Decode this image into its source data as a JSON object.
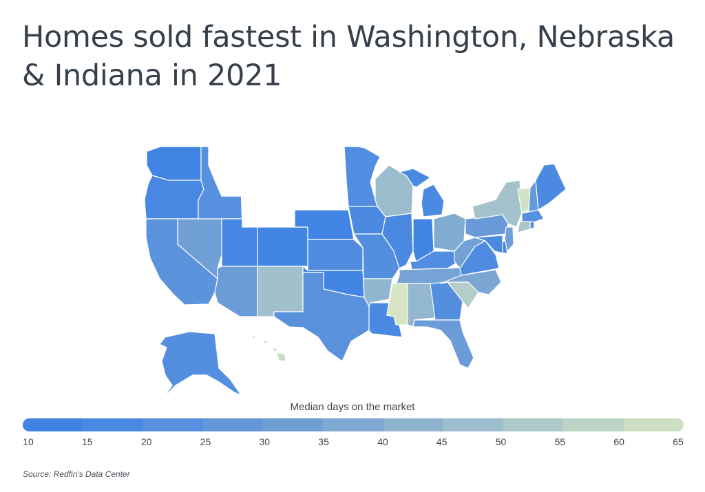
{
  "title": "Homes sold fastest in Washington, Nebraska & Indiana in 2021",
  "legend": {
    "title": "Median days on the market",
    "ticks": [
      "10",
      "15",
      "20",
      "25",
      "30",
      "35",
      "40",
      "45",
      "50",
      "55",
      "60",
      "65"
    ],
    "colors": [
      "#3f83e4",
      "#4a89e2",
      "#5690de",
      "#6397da",
      "#709fd6",
      "#7fa9d3",
      "#8db3cf",
      "#9dbecc",
      "#adc9c9",
      "#bdd4c6",
      "#cde0c4",
      "#dfe9c4"
    ]
  },
  "source": "Source:  Redfin's Data Center",
  "chart_data": {
    "type": "choropleth",
    "metric": "Median days on the market",
    "scale_range": [
      10,
      65
    ],
    "no_data_color": "#ffffff",
    "regions": [
      {
        "state": "WA",
        "value": 11
      },
      {
        "state": "OR",
        "value": 14
      },
      {
        "state": "CA",
        "value": 22
      },
      {
        "state": "NV",
        "value": 30
      },
      {
        "state": "ID",
        "value": 20
      },
      {
        "state": "MT",
        "value": null
      },
      {
        "state": "WY",
        "value": null
      },
      {
        "state": "UT",
        "value": 13
      },
      {
        "state": "AZ",
        "value": 28
      },
      {
        "state": "CO",
        "value": 12
      },
      {
        "state": "NM",
        "value": 46
      },
      {
        "state": "ND",
        "value": null
      },
      {
        "state": "SD",
        "value": null
      },
      {
        "state": "NE",
        "value": 11
      },
      {
        "state": "KS",
        "value": 17
      },
      {
        "state": "OK",
        "value": 12
      },
      {
        "state": "TX",
        "value": 21
      },
      {
        "state": "MN",
        "value": 18
      },
      {
        "state": "IA",
        "value": 16
      },
      {
        "state": "MO",
        "value": 19
      },
      {
        "state": "AR",
        "value": 41
      },
      {
        "state": "LA",
        "value": 15
      },
      {
        "state": "WI",
        "value": 44
      },
      {
        "state": "IL",
        "value": 15
      },
      {
        "state": "MI",
        "value": 15
      },
      {
        "state": "IN",
        "value": 11
      },
      {
        "state": "OH",
        "value": 36
      },
      {
        "state": "KY",
        "value": 18
      },
      {
        "state": "TN",
        "value": 32
      },
      {
        "state": "MS",
        "value": 63
      },
      {
        "state": "AL",
        "value": 42
      },
      {
        "state": "GA",
        "value": 19
      },
      {
        "state": "FL",
        "value": 28
      },
      {
        "state": "SC",
        "value": 52
      },
      {
        "state": "NC",
        "value": 34
      },
      {
        "state": "VA",
        "value": 17
      },
      {
        "state": "WV",
        "value": 31
      },
      {
        "state": "PA",
        "value": 27
      },
      {
        "state": "NY",
        "value": 47
      },
      {
        "state": "VT",
        "value": 61
      },
      {
        "state": "NH",
        "value": 26
      },
      {
        "state": "ME",
        "value": 16
      },
      {
        "state": "MA",
        "value": 20
      },
      {
        "state": "CT",
        "value": 48
      },
      {
        "state": "RI",
        "value": 20
      },
      {
        "state": "NJ",
        "value": 30
      },
      {
        "state": "DE",
        "value": 16
      },
      {
        "state": "MD",
        "value": 16
      },
      {
        "state": "AK",
        "value": 19
      },
      {
        "state": "HI",
        "value": 58
      }
    ]
  }
}
